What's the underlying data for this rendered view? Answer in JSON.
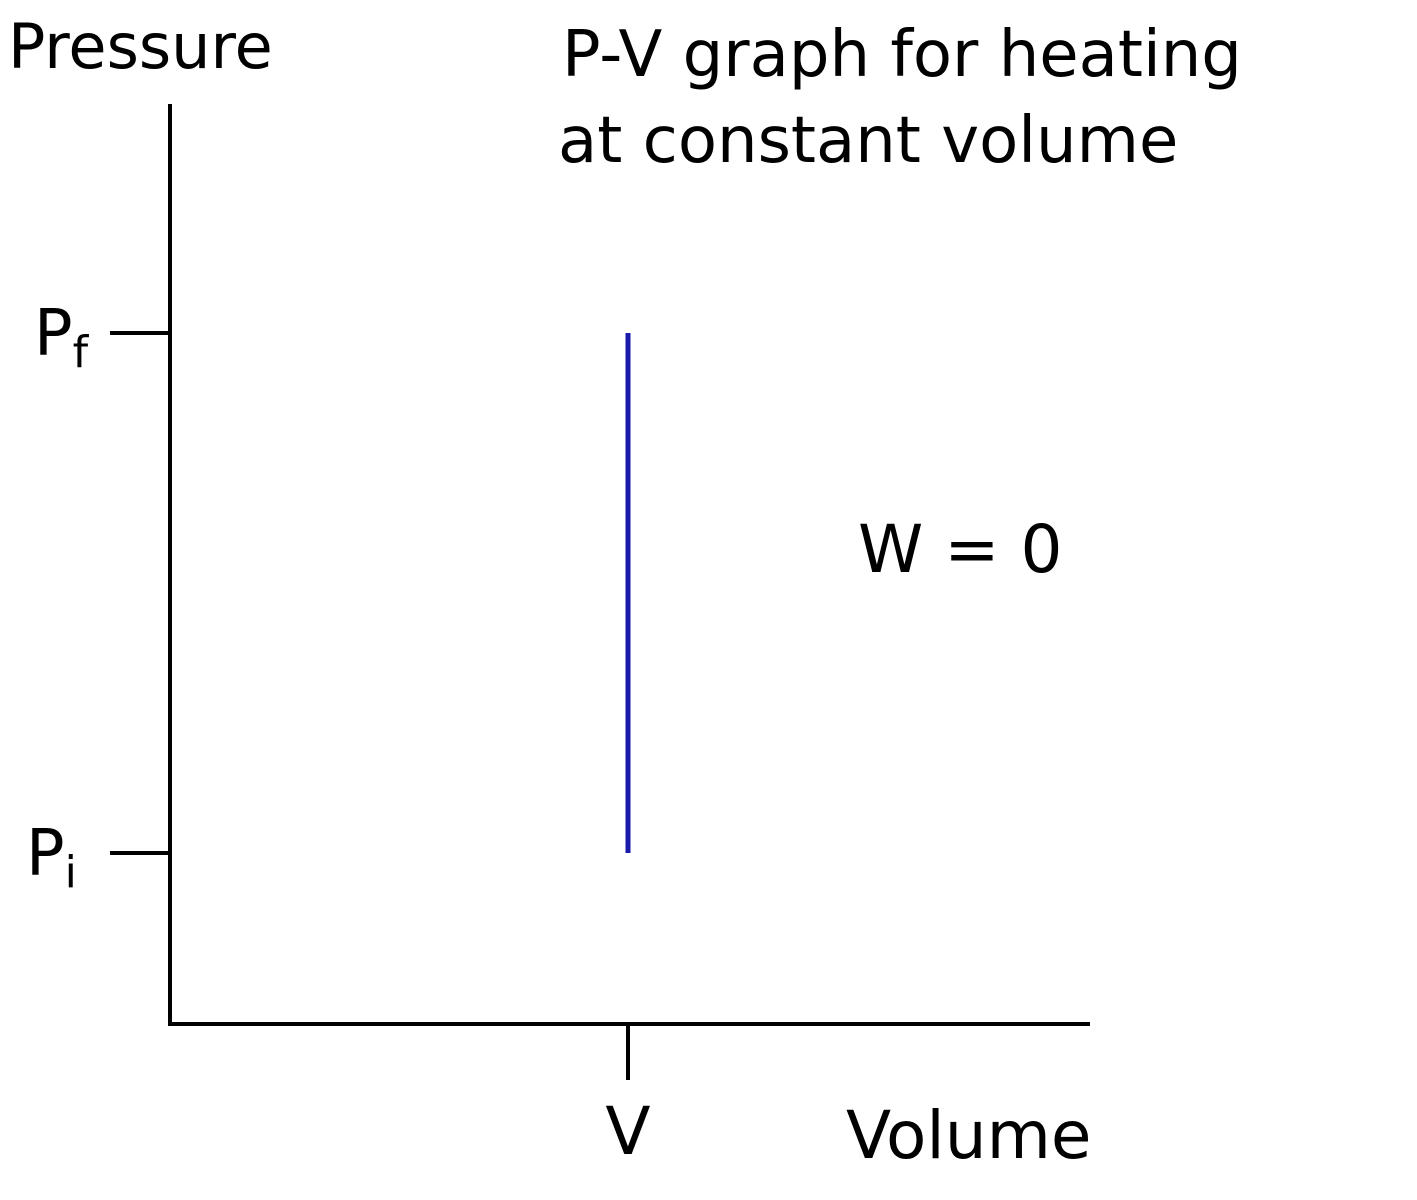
{
  "chart_data": {
    "type": "line",
    "title_lines": [
      "P-V graph for heating",
      "at constant volume"
    ],
    "xlabel": "Volume",
    "ylabel": "Pressure",
    "y_ticks": [
      {
        "label": "P",
        "sub": "f",
        "value": 0.8
      },
      {
        "label": "P",
        "sub": "i",
        "value": 0.2
      }
    ],
    "x_ticks": [
      {
        "label": "V",
        "value": 0.5
      }
    ],
    "xlim": [
      0,
      1
    ],
    "ylim": [
      0,
      1
    ],
    "series": [
      {
        "x": [
          0.5,
          0.5
        ],
        "y": [
          0.2,
          0.8
        ],
        "color": "#1a1aaa"
      }
    ],
    "annotation": "W = 0",
    "axis_color": "#000000"
  }
}
